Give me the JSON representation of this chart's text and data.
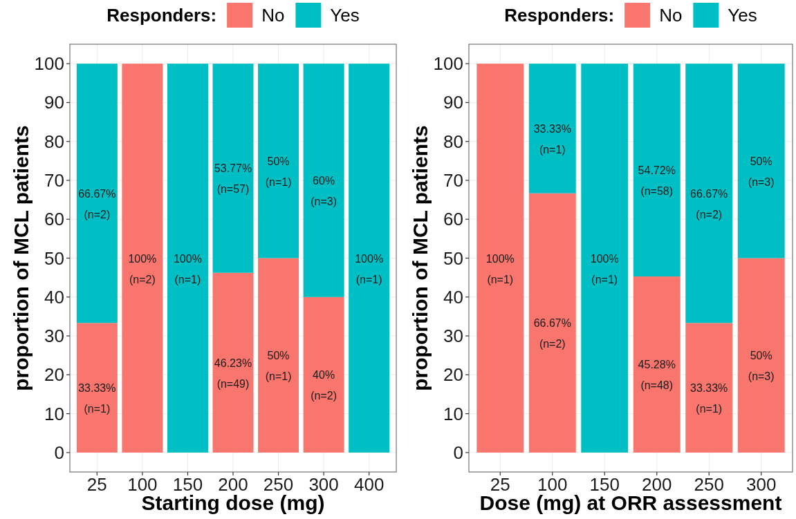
{
  "chart_data": [
    {
      "type": "bar",
      "stacked": true,
      "categories": [
        "25",
        "100",
        "150",
        "200",
        "250",
        "300",
        "400"
      ],
      "xlabel": "Starting dose (mg)",
      "ylabel": "proportion of MCL patients",
      "legend_title": "Responders:",
      "legend": "top",
      "grid": true,
      "ylim": [
        -5,
        105
      ],
      "yticks": [
        0,
        10,
        20,
        30,
        40,
        50,
        60,
        70,
        80,
        90,
        100
      ],
      "series": [
        {
          "name": "No",
          "color": "#f8766d",
          "values": [
            33.33,
            100,
            0,
            46.23,
            50,
            40,
            0
          ],
          "value_labels": [
            "33.33%\n(n=1)",
            "100%\n(n=2)",
            null,
            "46.23%\n(n=49)",
            "50%\n(n=1)",
            "40%\n(n=2)",
            null
          ]
        },
        {
          "name": "Yes",
          "color": "#00bfc4",
          "values": [
            66.67,
            0,
            100,
            53.77,
            50,
            60,
            100
          ],
          "value_labels": [
            "66.67%\n(n=2)",
            null,
            "100%\n(n=1)",
            "53.77%\n(n=57)",
            "50%\n(n=1)",
            "60%\n(n=3)",
            "100%\n(n=1)"
          ]
        }
      ]
    },
    {
      "type": "bar",
      "stacked": true,
      "categories": [
        "25",
        "100",
        "150",
        "200",
        "250",
        "300"
      ],
      "xlabel": "Dose (mg) at ORR assessment",
      "ylabel": "proportion of MCL patients",
      "legend_title": "Responders:",
      "legend": "top",
      "grid": true,
      "ylim": [
        -5,
        105
      ],
      "yticks": [
        0,
        10,
        20,
        30,
        40,
        50,
        60,
        70,
        80,
        90,
        100
      ],
      "series": [
        {
          "name": "No",
          "color": "#f8766d",
          "values": [
            100,
            66.67,
            0,
            45.28,
            33.33,
            50
          ],
          "value_labels": [
            "100%\n(n=1)",
            "66.67%\n(n=2)",
            null,
            "45.28%\n(n=48)",
            "33.33%\n(n=1)",
            "50%\n(n=3)"
          ]
        },
        {
          "name": "Yes",
          "color": "#00bfc4",
          "values": [
            0,
            33.33,
            100,
            54.72,
            66.67,
            50
          ],
          "value_labels": [
            null,
            "33.33%\n(n=1)",
            "100%\n(n=1)",
            "54.72%\n(n=58)",
            "66.67%\n(n=2)",
            "50%\n(n=3)"
          ]
        }
      ]
    }
  ]
}
